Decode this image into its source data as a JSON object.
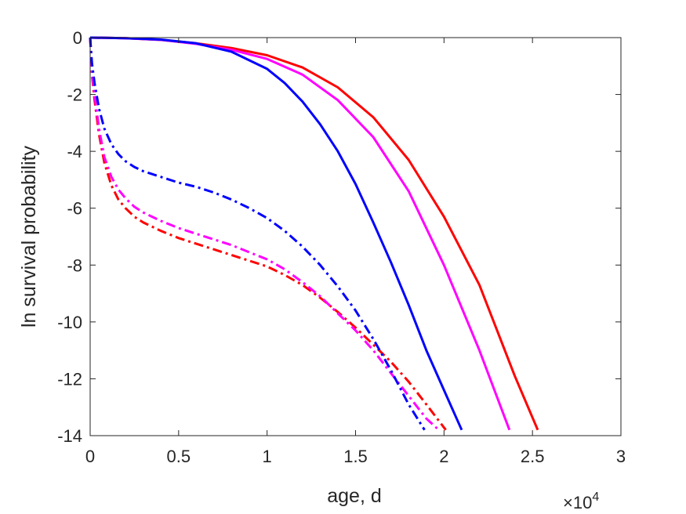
{
  "chart_data": {
    "type": "line",
    "xlabel": "age, d",
    "ylabel": "ln survival probability",
    "x_exponent": {
      "base": "×10",
      "power": "4"
    },
    "xlim": [
      0,
      30000
    ],
    "ylim": [
      -14,
      0
    ],
    "xticks": [
      0,
      5000,
      10000,
      15000,
      20000,
      25000,
      30000
    ],
    "xtick_labels": [
      "0",
      "0.5",
      "1",
      "1.5",
      "2",
      "2.5",
      "3"
    ],
    "yticks": [
      0,
      -2,
      -4,
      -6,
      -8,
      -10,
      -12,
      -14
    ],
    "ytick_labels": [
      "0",
      "-2",
      "-4",
      "-6",
      "-8",
      "-10",
      "-12",
      "-14"
    ],
    "grid": false,
    "box": true,
    "series": [
      {
        "color": "#ff0000",
        "style": "solid",
        "x": [
          0,
          2000,
          4000,
          6000,
          8000,
          10000,
          12000,
          14000,
          16000,
          18000,
          20000,
          22000,
          24000,
          25300
        ],
        "y": [
          0,
          -0.02,
          -0.08,
          -0.2,
          -0.37,
          -0.62,
          -1.05,
          -1.75,
          -2.8,
          -4.3,
          -6.3,
          -8.7,
          -11.9,
          -13.8
        ]
      },
      {
        "color": "#ff00ff",
        "style": "solid",
        "x": [
          0,
          2000,
          4000,
          6000,
          8000,
          10000,
          12000,
          14000,
          16000,
          18000,
          20000,
          22000,
          23700
        ],
        "y": [
          0,
          -0.02,
          -0.08,
          -0.22,
          -0.43,
          -0.75,
          -1.3,
          -2.2,
          -3.5,
          -5.4,
          -8.0,
          -11.0,
          -13.8
        ]
      },
      {
        "color": "#0000ff",
        "style": "solid",
        "x": [
          0,
          2000,
          4000,
          6000,
          8000,
          10000,
          11000,
          12000,
          13000,
          14000,
          15000,
          16000,
          17000,
          18000,
          19000,
          20000,
          21000
        ],
        "y": [
          0,
          -0.02,
          -0.07,
          -0.2,
          -0.5,
          -1.1,
          -1.6,
          -2.25,
          -3.05,
          -4.0,
          -5.15,
          -6.5,
          -7.9,
          -9.4,
          -11.0,
          -12.4,
          -13.8
        ]
      },
      {
        "color": "#ff0000",
        "style": "dashdot",
        "x": [
          0,
          100,
          250,
          500,
          800,
          1200,
          1600,
          2000,
          2500,
          3000,
          4000,
          5000,
          6000,
          7000,
          8000,
          9000,
          10000,
          11000,
          12000,
          13000,
          14000,
          15000,
          16000,
          17000,
          18000,
          19000,
          20100
        ],
        "y": [
          0,
          -1.3,
          -2.2,
          -3.4,
          -4.4,
          -5.2,
          -5.7,
          -6.0,
          -6.3,
          -6.5,
          -6.8,
          -7.05,
          -7.25,
          -7.45,
          -7.65,
          -7.85,
          -8.05,
          -8.35,
          -8.7,
          -9.15,
          -9.65,
          -10.2,
          -10.8,
          -11.4,
          -12.1,
          -12.9,
          -13.8
        ]
      },
      {
        "color": "#ff00ff",
        "style": "dashdot",
        "x": [
          0,
          100,
          250,
          500,
          800,
          1200,
          1600,
          2000,
          2500,
          3000,
          4000,
          5000,
          6000,
          7000,
          8000,
          9000,
          10000,
          11000,
          12000,
          13000,
          14000,
          15000,
          16000,
          17000,
          18000,
          19000,
          19700
        ],
        "y": [
          0,
          -1.2,
          -2.0,
          -3.2,
          -4.2,
          -4.9,
          -5.35,
          -5.65,
          -5.95,
          -6.15,
          -6.45,
          -6.7,
          -6.9,
          -7.1,
          -7.3,
          -7.55,
          -7.8,
          -8.15,
          -8.6,
          -9.1,
          -9.7,
          -10.3,
          -11.0,
          -11.8,
          -12.6,
          -13.4,
          -13.8
        ]
      },
      {
        "color": "#0000ff",
        "style": "dashdot",
        "x": [
          0,
          100,
          250,
          500,
          800,
          1200,
          1600,
          2000,
          2500,
          3000,
          4000,
          5000,
          6000,
          7000,
          8000,
          9000,
          10000,
          11000,
          12000,
          13000,
          14000,
          15000,
          16000,
          17000,
          18000,
          18900
        ],
        "y": [
          0,
          -0.9,
          -1.6,
          -2.5,
          -3.2,
          -3.75,
          -4.1,
          -4.35,
          -4.55,
          -4.7,
          -4.9,
          -5.1,
          -5.25,
          -5.45,
          -5.7,
          -6.0,
          -6.35,
          -6.8,
          -7.35,
          -8.0,
          -8.75,
          -9.6,
          -10.6,
          -11.7,
          -12.9,
          -13.8
        ]
      }
    ]
  }
}
